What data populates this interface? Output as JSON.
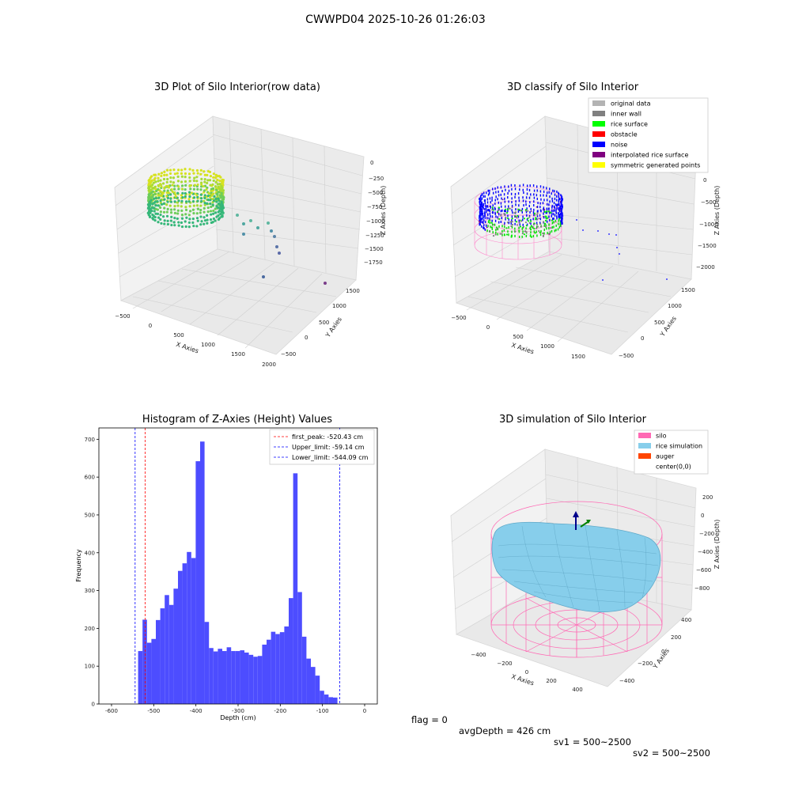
{
  "suptitle": "CWWPD04 2025-10-26 01:26:03",
  "footer": {
    "flag": "flag = 0",
    "avg_depth": "avgDepth = 426 cm",
    "sv1": "sv1 = 500~2500",
    "sv2": "sv2 = 500~2500"
  },
  "panels": {
    "raw": {
      "title": "3D Plot of Silo Interior(row data)",
      "xlabel": "X Axies",
      "ylabel": "Y Axies",
      "zlabel": "Z Axies (Depth)",
      "xticks": [
        "−500",
        "0",
        "500",
        "1000",
        "1500",
        "2000"
      ],
      "yticks": [
        "−500",
        "0",
        "500",
        "1000",
        "1500"
      ],
      "zticks": [
        "0",
        "−250",
        "−500",
        "−750",
        "−1000",
        "−1250",
        "−1500",
        "−1750"
      ]
    },
    "classify": {
      "title": "3D classify of Silo Interior",
      "xlabel": "X Axies",
      "ylabel": "Y Axies",
      "zlabel": "Z Axies (Depth)",
      "xticks": [
        "−500",
        "0",
        "500",
        "1000",
        "1500"
      ],
      "yticks": [
        "−500",
        "0",
        "500",
        "1000",
        "1500"
      ],
      "zticks": [
        "0",
        "−500",
        "−1000",
        "−1500",
        "−2000"
      ],
      "legend": [
        {
          "label": "original data",
          "color": "#b3b3b3"
        },
        {
          "label": "inner wall",
          "color": "#808080"
        },
        {
          "label": "rice surface",
          "color": "#00ff00"
        },
        {
          "label": "obstacle",
          "color": "#ff0000"
        },
        {
          "label": "noise",
          "color": "#0000ff"
        },
        {
          "label": "interpolated rice surface",
          "color": "#800080"
        },
        {
          "label": "symmetric generated points",
          "color": "#ffff00"
        }
      ]
    },
    "simulation": {
      "title": "3D simulation of Silo Interior",
      "xlabel": "X Axies",
      "ylabel": "Y Axies",
      "zlabel": "Z Axies (Depth)",
      "xticks": [
        "−400",
        "−200",
        "0",
        "200",
        "400"
      ],
      "yticks": [
        "−400",
        "−200",
        "0",
        "200",
        "400"
      ],
      "zticks": [
        "200",
        "0",
        "−200",
        "−400",
        "−600",
        "−800"
      ],
      "legend": [
        {
          "label": "silo",
          "color": "#ff69b4"
        },
        {
          "label": "rice simulation",
          "color": "#87ceeb"
        },
        {
          "label": "auger",
          "color": "#ff4500"
        },
        {
          "label": "center(0,0)",
          "color": ""
        }
      ]
    }
  },
  "chart_data": [
    {
      "type": "bar",
      "title": "Histogram of Z-Axies (Height) Values",
      "xlabel": "Depth (cm)",
      "ylabel": "Frequency",
      "xlim": [
        -630,
        30
      ],
      "ylim": [
        0,
        730
      ],
      "xticks": [
        -600,
        -500,
        -400,
        -300,
        -200,
        -100,
        0
      ],
      "yticks": [
        0,
        100,
        200,
        300,
        400,
        500,
        600,
        700
      ],
      "bin_start": -537,
      "bin_width": 10.5,
      "values": [
        140,
        223,
        162,
        172,
        222,
        253,
        288,
        262,
        305,
        352,
        372,
        402,
        386,
        642,
        694,
        217,
        148,
        139,
        146,
        140,
        150,
        140,
        140,
        142,
        136,
        130,
        125,
        127,
        157,
        170,
        191,
        185,
        190,
        205,
        280,
        610,
        296,
        178,
        120,
        98,
        75,
        35,
        25,
        18,
        17
      ],
      "bar_color": "#4d4dff",
      "grid": false,
      "legend_position": "top-right",
      "vlines": [
        {
          "label": "first_peak: -520.43 cm",
          "x": -520.43,
          "color": "#ff0000"
        },
        {
          "label": "Upper_limit: -59.14 cm",
          "x": -59.14,
          "color": "#0000ff"
        },
        {
          "label": "Lower_limit: -544.09 cm",
          "x": -544.09,
          "color": "#0000ff"
        }
      ]
    }
  ]
}
